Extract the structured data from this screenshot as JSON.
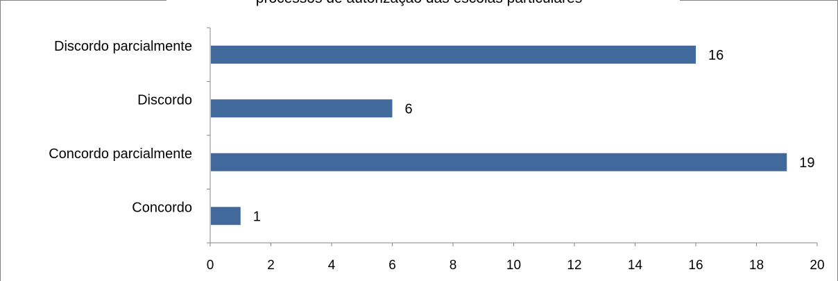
{
  "chart_data": {
    "type": "bar",
    "orientation": "horizontal",
    "title": "processos de autorização das escolas particulares",
    "categories": [
      "Concordo",
      "Concordo parcialmente",
      "Discordo",
      "Discordo parcialmente"
    ],
    "values": [
      1,
      19,
      6,
      16
    ],
    "data_labels": [
      "1",
      "19",
      "6",
      "16"
    ],
    "xlim": [
      0,
      20
    ],
    "x_ticks": [
      "0",
      "2",
      "4",
      "6",
      "8",
      "10",
      "12",
      "14",
      "16",
      "18",
      "20"
    ],
    "bar_color": "#41699C",
    "grid": false,
    "legend": "none"
  }
}
